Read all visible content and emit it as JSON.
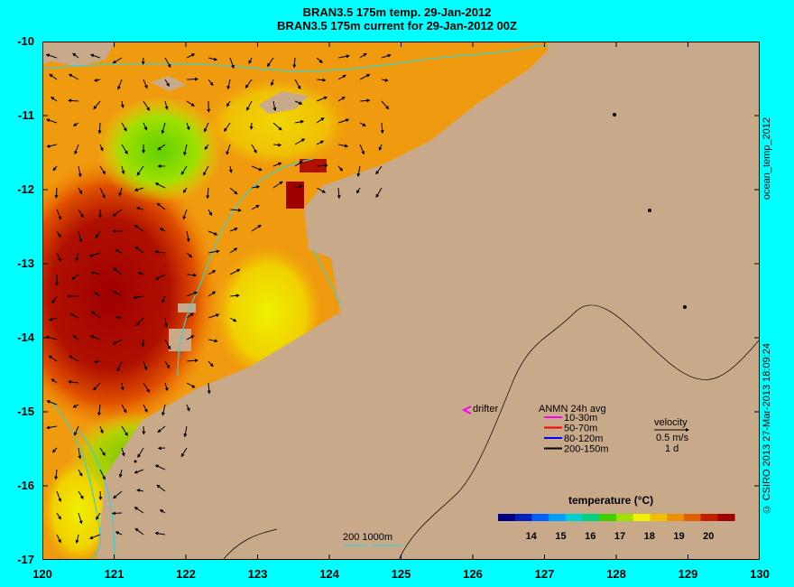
{
  "title_line1": "BRAN3.5 175m temp. 29-Jan-2012",
  "title_line2": "BRAN3.5 175m current for 29-Jan-2012 00Z",
  "side_top": "ocean_temp_2012",
  "side_bottom": "© CSIRO 2013   27-Mar-2013 18:09:24",
  "x_axis": {
    "ticks": [
      "120",
      "121",
      "122",
      "123",
      "124",
      "125",
      "126",
      "127",
      "128",
      "129",
      "130"
    ]
  },
  "y_axis": {
    "ticks": [
      "-10",
      "-11",
      "-12",
      "-13",
      "-14",
      "-15",
      "-16",
      "-17"
    ]
  },
  "legend": {
    "drifter_label": "drifter",
    "anmn_title": "ANMN 24h avg",
    "anmn_items": [
      {
        "label": "10-30m",
        "color": "#ff00ff"
      },
      {
        "label": "50-70m",
        "color": "#ff0000"
      },
      {
        "label": "80-120m",
        "color": "#0000ff"
      },
      {
        "label": "200-150m",
        "color": "#000000"
      }
    ],
    "velocity_title": "velocity",
    "velocity_scale": "0.5 m/s",
    "velocity_time": "1 d",
    "colorbar_title": "temperature (°C)",
    "colorbar_ticks": [
      "14",
      "15",
      "16",
      "17",
      "18",
      "19",
      "20"
    ],
    "isobath_label": "200  1000m"
  },
  "colors": {
    "land": "#c8a98a",
    "background": "#00ffff",
    "isobath": "#40d0c8"
  }
}
